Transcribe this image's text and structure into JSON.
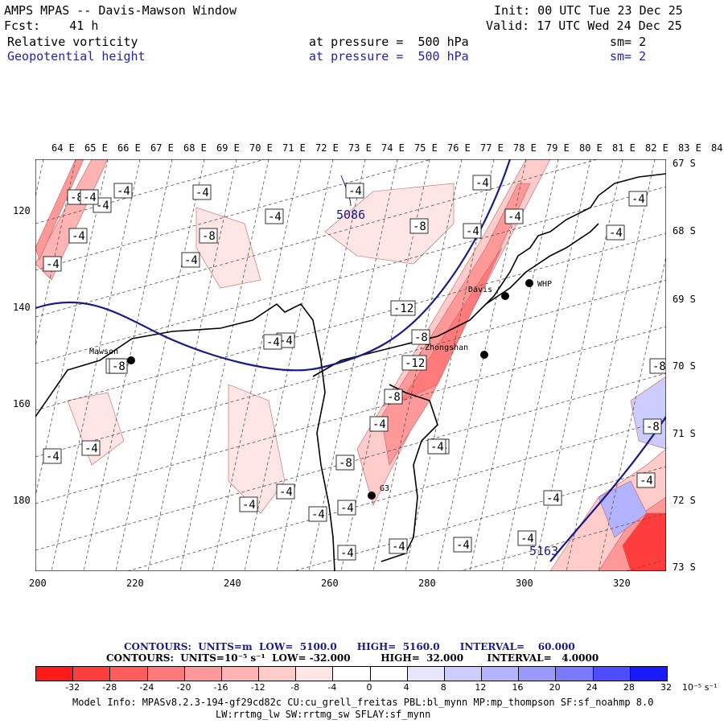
{
  "header": {
    "title": "AMPS MPAS -- Davis-Mawson Window",
    "init": "Init: 00 UTC Tue 23 Dec 25",
    "forecast": "Fcst:    41 h",
    "valid": "Valid: 17 UTC Wed 24 Dec 25",
    "field1_name": "Relative vorticity",
    "field1_level": "at pressure =  500 hPa",
    "field1_sm": "sm= 2",
    "field2_name": "Geopotential height",
    "field2_level": "at pressure =  500 hPa",
    "field2_sm": "sm= 2"
  },
  "map": {
    "lon_labels": [
      "64 E",
      "65 E",
      "66 E",
      "67 E",
      "68 E",
      "69 E",
      "70 E",
      "71 E",
      "72 E",
      "73 E",
      "74 E",
      "75 E",
      "76 E",
      "77 E",
      "78 E",
      "79 E",
      "80 E",
      "81 E",
      "82 E",
      "83 E",
      "84 E"
    ],
    "lat_labels": [
      "67 S",
      "68 S",
      "69 S",
      "70 S",
      "71 S",
      "72 S",
      "73 S"
    ],
    "x_ticks": [
      "200",
      "220",
      "240",
      "260",
      "280",
      "300",
      "320"
    ],
    "y_ticks": [
      "120",
      "140",
      "160",
      "180"
    ],
    "stations": [
      {
        "name": "Mawson"
      },
      {
        "name": "Davis"
      },
      {
        "name": "WHP"
      },
      {
        "name": "Zhongshan"
      },
      {
        "name": "G3"
      }
    ],
    "height_labels": [
      "5086",
      "5163"
    ],
    "vorticity_labels": [
      "-8",
      "-4",
      "-4",
      "-4",
      "-4",
      "-4",
      "-4",
      "-8",
      "-4",
      "-4",
      "-8",
      "-4",
      "-4",
      "-4",
      "-4",
      "-4",
      "-12",
      "-8",
      "-12",
      "-8",
      "-4",
      "-8",
      "-4",
      "-4",
      "-4",
      "-4",
      "-4",
      "-4",
      "-4",
      "-4",
      "-4",
      "-4",
      "-4",
      "-4",
      "-4",
      "-8",
      "-8",
      "-4",
      "-8",
      "-4",
      "-8",
      "-4",
      "-4"
    ],
    "colors": {
      "height_contour": "#1a1a8c",
      "coast": "#000000"
    }
  },
  "legend": {
    "contours1": "CONTOURS:  UNITS=m  LOW=  5100.0      HIGH=  5160.0      INTERVAL=    60.000",
    "contours2": "CONTOURS:  UNITS=10⁻⁵ s⁻¹  LOW= -32.000         HIGH=  32.000       INTERVAL=   4.0000",
    "colorbar_ticks": [
      "-32",
      "-28",
      "-24",
      "-20",
      "-16",
      "-12",
      "-8",
      "-4",
      "0",
      "4",
      "8",
      "12",
      "16",
      "20",
      "24",
      "28",
      "32"
    ],
    "colorbar_unit": "10⁻⁵ s⁻¹",
    "colorbar_colors": [
      "#ff1a1a",
      "#ff3d3d",
      "#ff5c5c",
      "#ff7a7a",
      "#ff9999",
      "#ffb3b3",
      "#ffcccc",
      "#ffe6e6",
      "#ffffff",
      "#ffffff",
      "#e6e6ff",
      "#ccccff",
      "#b3b3ff",
      "#9999ff",
      "#7a7aff",
      "#4d4dff",
      "#1a1aff"
    ]
  },
  "model_info": {
    "line1": "Model Info: MPASv8.2.3-194-gf29cd82c CU:cu_grell_freitas PBL:bl_mynn MP:mp_thompson SF:sf_noahmp 8.0",
    "line2": "LW:rrtmg_lw SW:rrtmg_sw SFLAY:sf_mynn"
  }
}
